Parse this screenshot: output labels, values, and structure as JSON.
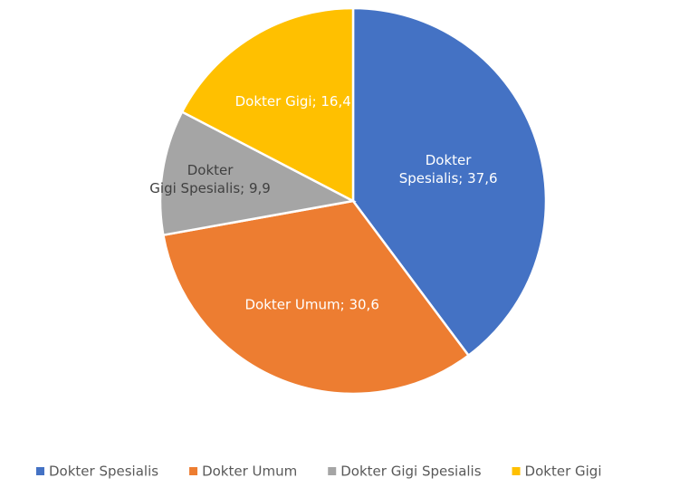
{
  "chart_data": {
    "type": "pie",
    "categories": [
      "Dokter Spesialis",
      "Dokter Umum",
      "Dokter Gigi Spesialis",
      "Dokter Gigi"
    ],
    "values": [
      37.6,
      30.6,
      9.9,
      16.4
    ],
    "value_labels": [
      "Dokter Spesialis; 37,6",
      "Dokter Umum; 30,6",
      "Dokter Gigi Spesialis; 9,9",
      "Dokter Gigi; 16,4"
    ],
    "colors": [
      "#4472c4",
      "#ed7d31",
      "#a5a5a5",
      "#ffc000"
    ],
    "legend": "bottom"
  }
}
